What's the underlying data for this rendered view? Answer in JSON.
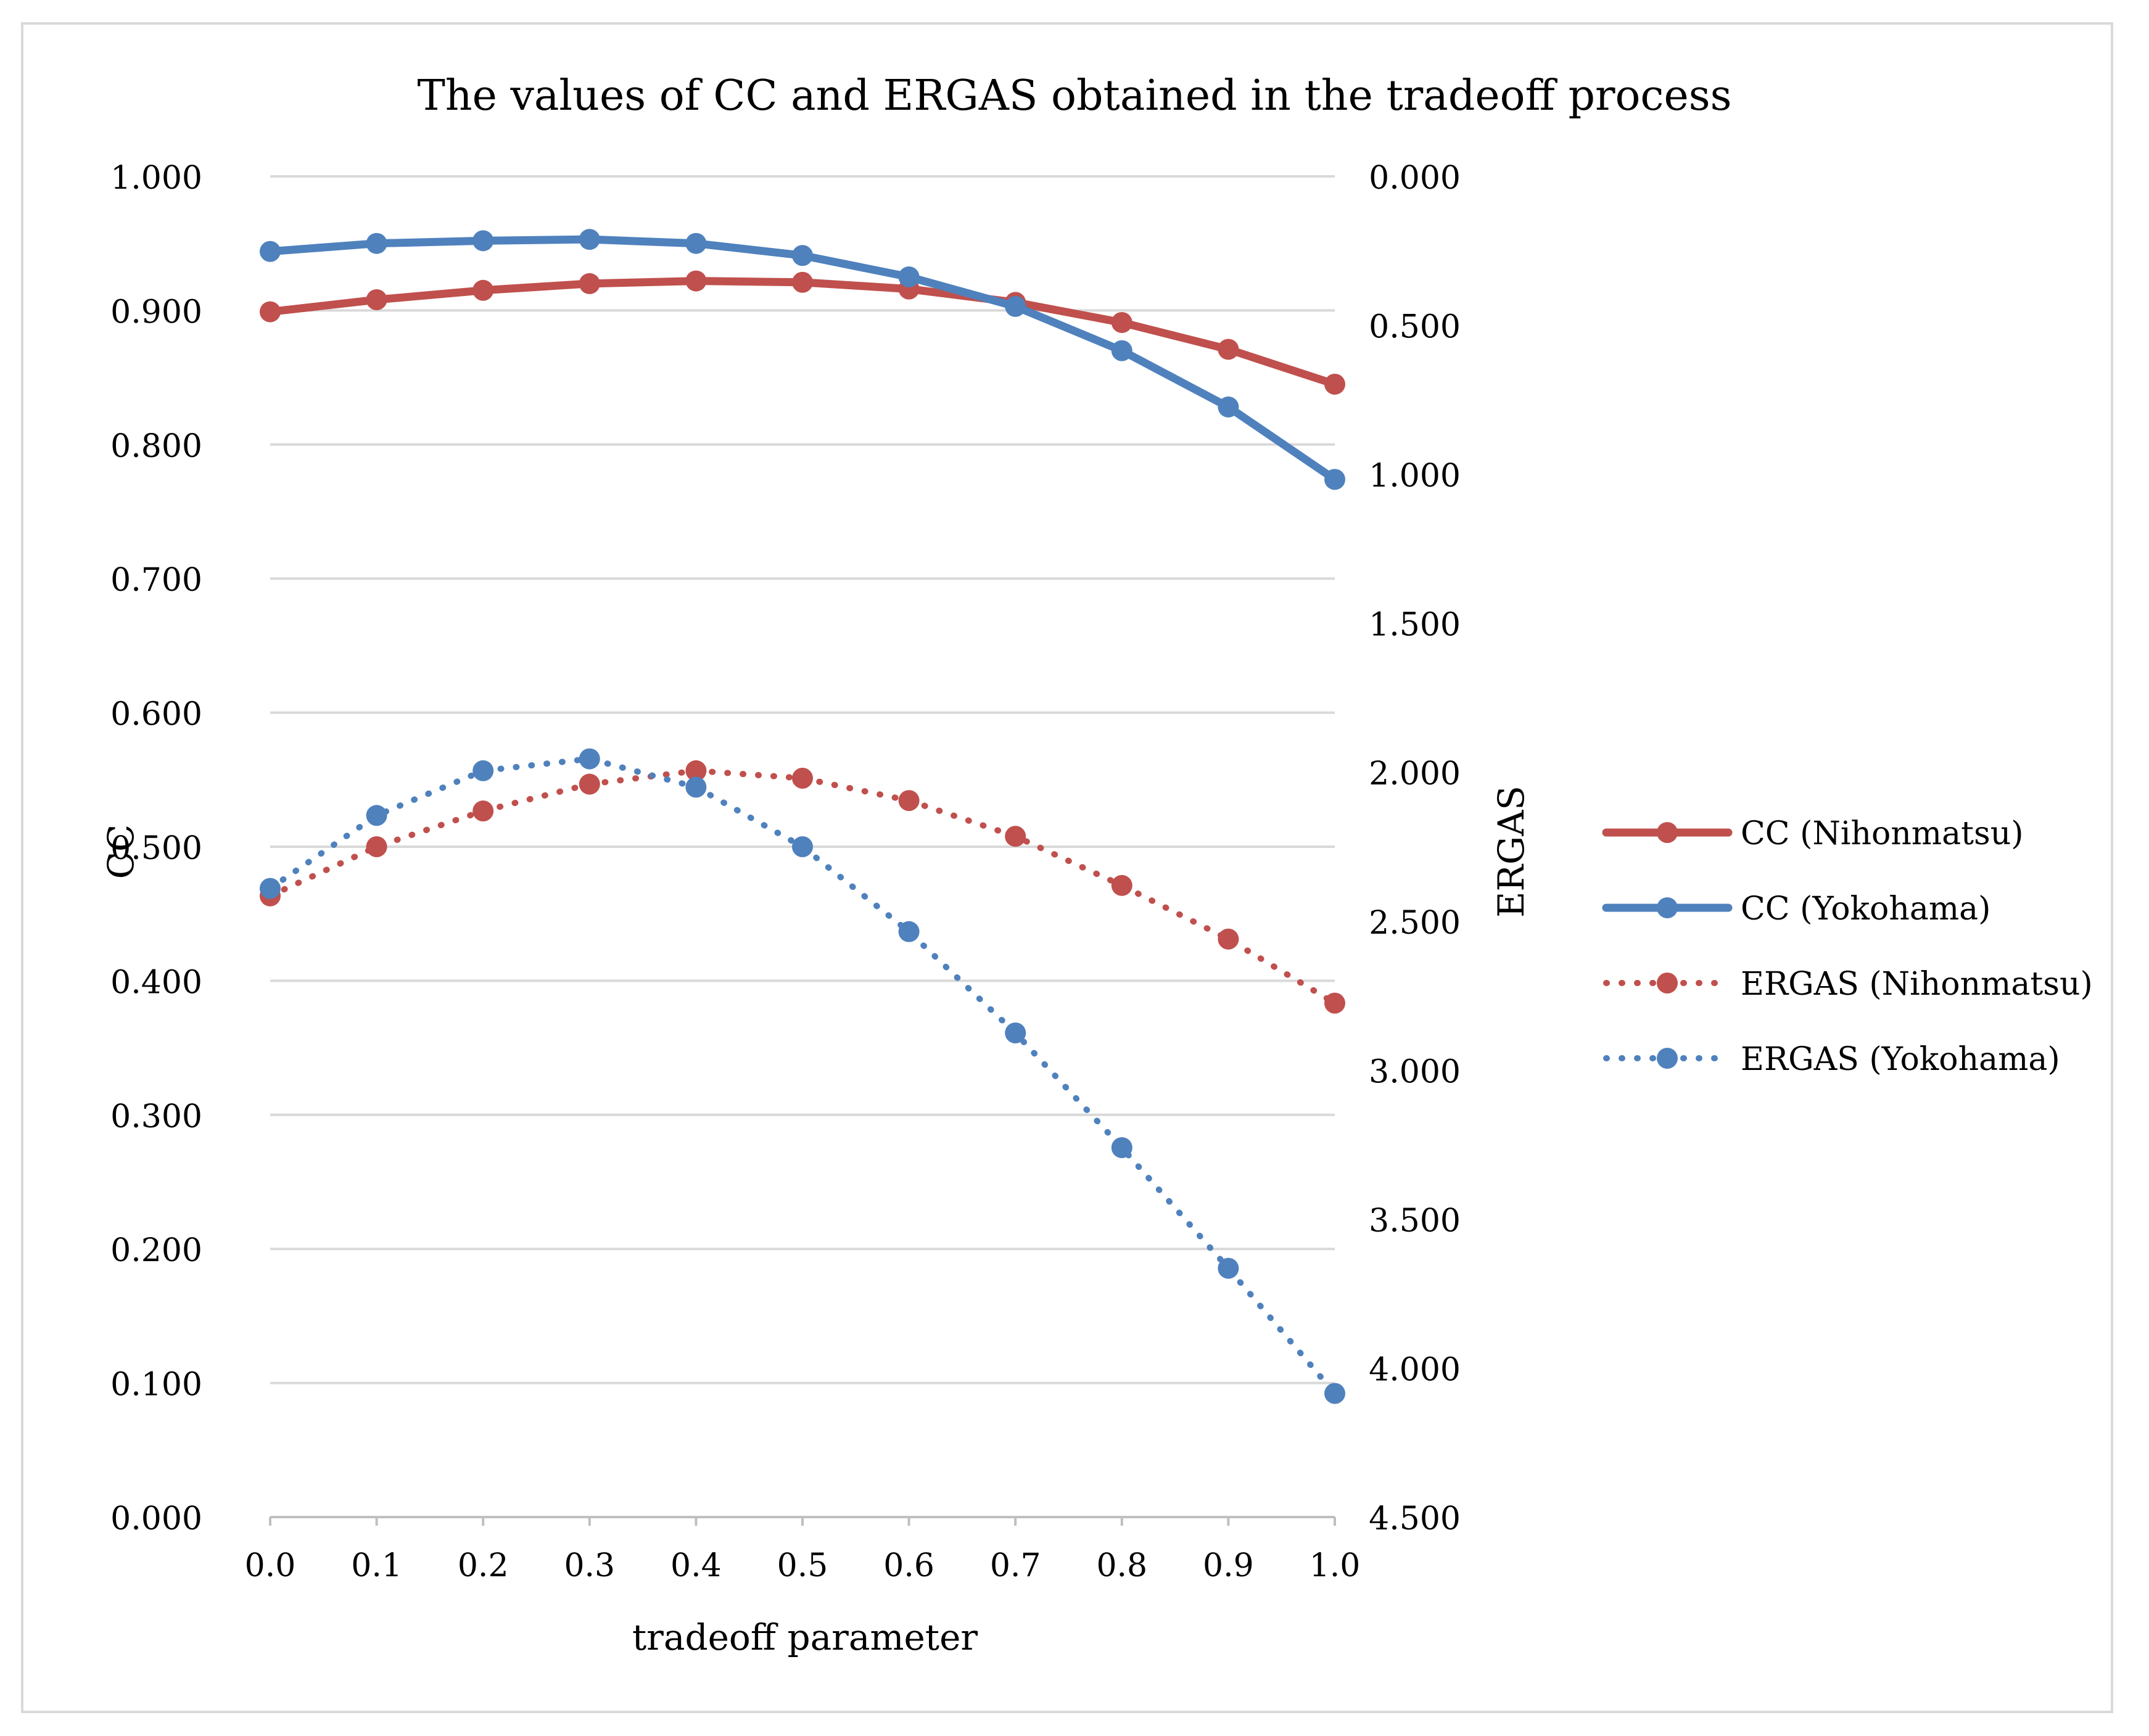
{
  "chart_data": {
    "type": "line",
    "title": "The values of CC and ERGAS obtained in the tradeoff process",
    "xlabel": "tradeoff parameter",
    "ylabel": "CC",
    "y2label": "ERGAS",
    "x": [
      0.0,
      0.1,
      0.2,
      0.3,
      0.4,
      0.5,
      0.6,
      0.7,
      0.8,
      0.9,
      1.0
    ],
    "x_tick_labels": [
      "0.0",
      "0.1",
      "0.2",
      "0.3",
      "0.4",
      "0.5",
      "0.6",
      "0.7",
      "0.8",
      "0.9",
      "1.0"
    ],
    "ylim": [
      0,
      1
    ],
    "y_ticks": [
      0.0,
      0.1,
      0.2,
      0.3,
      0.4,
      0.5,
      0.6,
      0.7,
      0.8,
      0.9,
      1.0
    ],
    "y_tick_labels": [
      "0.000",
      "0.100",
      "0.200",
      "0.300",
      "0.400",
      "0.500",
      "0.600",
      "0.700",
      "0.800",
      "0.900",
      "1.000"
    ],
    "y2lim": [
      4.5,
      0
    ],
    "y2_reversed": true,
    "y2_ticks": [
      0,
      0.5,
      1.0,
      1.5,
      2.0,
      2.5,
      3.0,
      3.5,
      4.0,
      4.5
    ],
    "y2_tick_labels": [
      "0.000",
      "0.500",
      "1.000",
      "1.500",
      "2.000",
      "2.500",
      "3.000",
      "3.500",
      "4.000",
      "4.500"
    ],
    "grid": true,
    "legend_position": "right",
    "series": [
      {
        "name": "CC (Nihonmatsu)",
        "axis": "left",
        "style": "solid",
        "color": "#c0504d",
        "values": [
          0.899,
          0.908,
          0.915,
          0.92,
          0.922,
          0.921,
          0.916,
          0.906,
          0.891,
          0.871,
          0.845
        ]
      },
      {
        "name": "CC (Yokohama)",
        "axis": "left",
        "style": "solid",
        "color": "#4f81bd",
        "values": [
          0.944,
          0.95,
          0.952,
          0.953,
          0.95,
          0.941,
          0.925,
          0.903,
          0.87,
          0.828,
          0.774
        ]
      },
      {
        "name": "ERGAS (Nihonmatsu)",
        "axis": "right",
        "style": "dotted",
        "color": "#c0504d",
        "values": [
          2.415,
          2.25,
          2.13,
          2.04,
          1.995,
          2.02,
          2.095,
          2.215,
          2.38,
          2.56,
          2.775
        ]
      },
      {
        "name": "ERGAS (Yokohama)",
        "axis": "right",
        "style": "dotted",
        "color": "#4f81bd",
        "values": [
          2.39,
          2.145,
          1.995,
          1.955,
          2.05,
          2.25,
          2.535,
          2.875,
          3.26,
          3.665,
          4.085
        ]
      }
    ]
  }
}
